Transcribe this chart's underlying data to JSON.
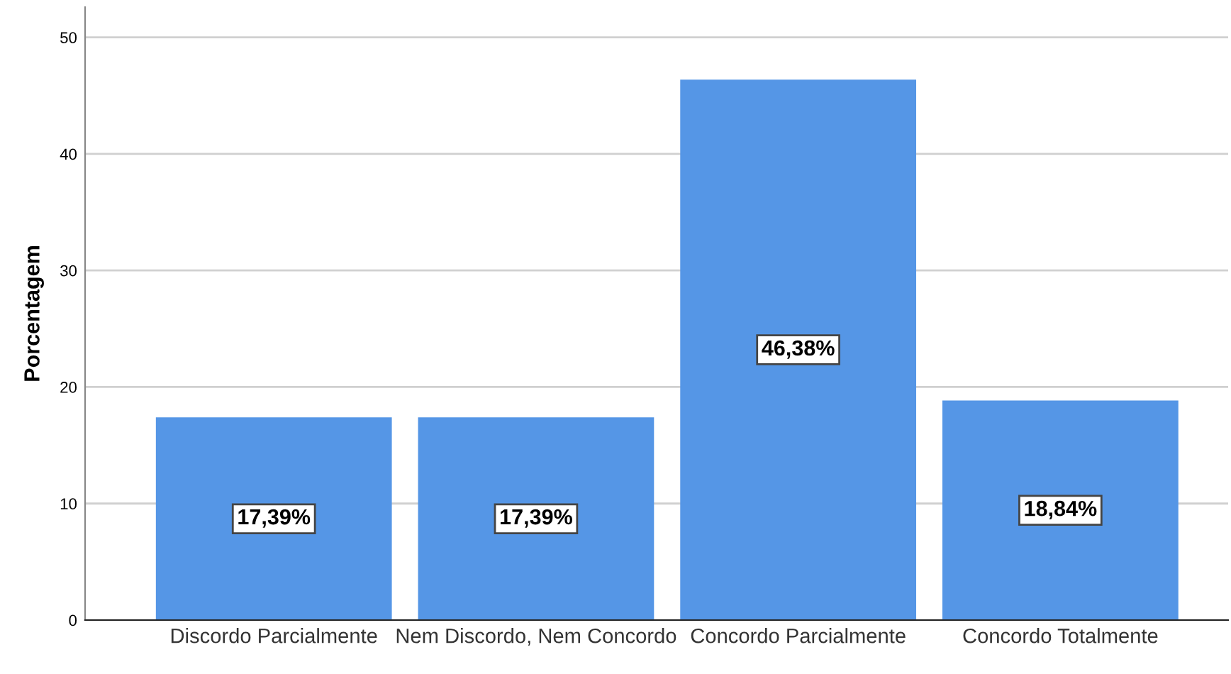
{
  "chart_data": {
    "type": "bar",
    "ylabel": "Porcentagem",
    "categories": [
      "Discordo Parcialmente",
      "Nem Discordo, Nem Concordo",
      "Concordo Parcialmente",
      "Concordo Totalmente"
    ],
    "values": [
      17.39,
      17.39,
      46.38,
      18.84
    ],
    "value_labels": [
      "17,39%",
      "17,39%",
      "46,38%",
      "18,84%"
    ],
    "color": "#5596e6",
    "ylim": [
      0,
      52.6
    ],
    "yticks": [
      0,
      10,
      20,
      30,
      40,
      50
    ],
    "grid": "y",
    "legend": false
  }
}
